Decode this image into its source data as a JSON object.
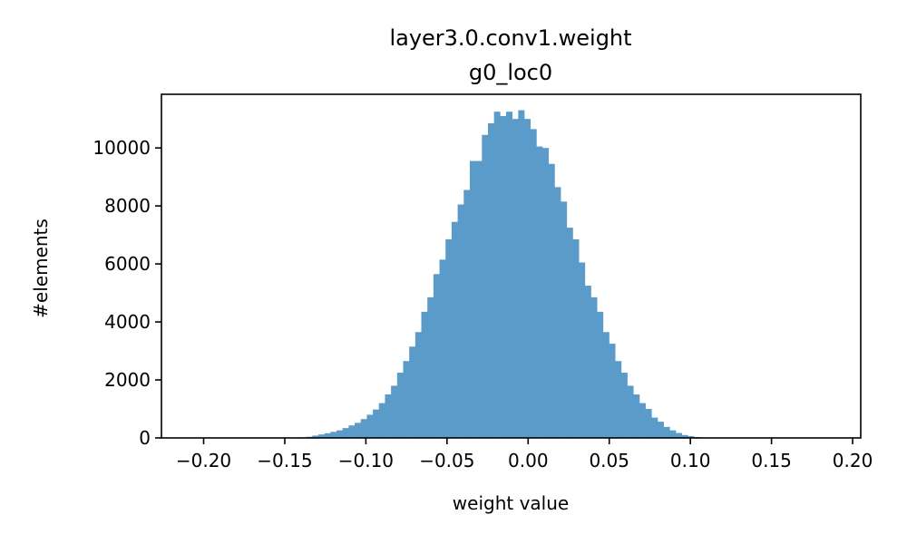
{
  "chart_data": {
    "type": "bar",
    "title": "layer3.0.conv1.weight",
    "subtitle": "g0_loc0",
    "xlabel": "weight value",
    "ylabel": "#elements",
    "xlim": [
      -0.226,
      0.205
    ],
    "ylim": [
      0,
      11850
    ],
    "xticks": [
      -0.2,
      -0.15,
      -0.1,
      -0.05,
      0.0,
      0.05,
      0.1,
      0.15,
      0.2
    ],
    "xtick_labels": [
      "−0.20",
      "−0.15",
      "−0.10",
      "−0.05",
      "0.00",
      "0.05",
      "0.10",
      "0.15",
      "0.20"
    ],
    "yticks": [
      0,
      2000,
      4000,
      6000,
      8000,
      10000
    ],
    "ytick_labels": [
      "0",
      "2000",
      "4000",
      "6000",
      "8000",
      "10000"
    ],
    "bar_color": "#5b9bc9",
    "bin_width": 0.003733,
    "bins_start": [
      -0.1405,
      -0.13677,
      -0.13303,
      -0.1293,
      -0.12557,
      -0.12183,
      -0.1181,
      -0.11437,
      -0.11063,
      -0.1069,
      -0.10317,
      -0.09943,
      -0.0957,
      -0.09197,
      -0.08823,
      -0.0845,
      -0.08077,
      -0.07703,
      -0.0733,
      -0.06957,
      -0.06583,
      -0.0621,
      -0.05837,
      -0.05463,
      -0.0509,
      -0.04717,
      -0.04343,
      -0.0397,
      -0.03597,
      -0.03223,
      -0.0285,
      -0.02477,
      -0.02103,
      -0.0173,
      -0.01357,
      -0.00983,
      -0.0061,
      -0.00237,
      0.00137,
      0.0051,
      0.00883,
      0.01257,
      0.0163,
      0.02003,
      0.02377,
      0.0275,
      0.03123,
      0.03497,
      0.0387,
      0.04243,
      0.04617,
      0.0499,
      0.05363,
      0.05737,
      0.0611,
      0.06483,
      0.06857,
      0.0723,
      0.07603,
      0.07977,
      0.0835,
      0.08723,
      0.09097,
      0.0947,
      0.09843,
      0.10217,
      0.1059,
      0.10963,
      0.11337,
      0.1171,
      0.12083,
      0.12457,
      0.1283,
      0.13203
    ],
    "counts": [
      20,
      40,
      80,
      120,
      160,
      210,
      260,
      340,
      430,
      520,
      650,
      800,
      980,
      1200,
      1500,
      1800,
      2250,
      2650,
      3150,
      3650,
      4350,
      4850,
      5650,
      6150,
      6850,
      7450,
      8050,
      8550,
      9550,
      9550,
      10450,
      10850,
      11250,
      11100,
      11250,
      11000,
      11300,
      11000,
      10650,
      10050,
      10000,
      9450,
      8650,
      8150,
      7250,
      6850,
      6050,
      5250,
      4850,
      4350,
      3650,
      3250,
      2650,
      2250,
      1800,
      1500,
      1200,
      1000,
      700,
      560,
      380,
      260,
      170,
      100,
      60,
      30,
      15,
      8,
      4,
      2,
      1,
      1,
      0,
      0
    ]
  }
}
